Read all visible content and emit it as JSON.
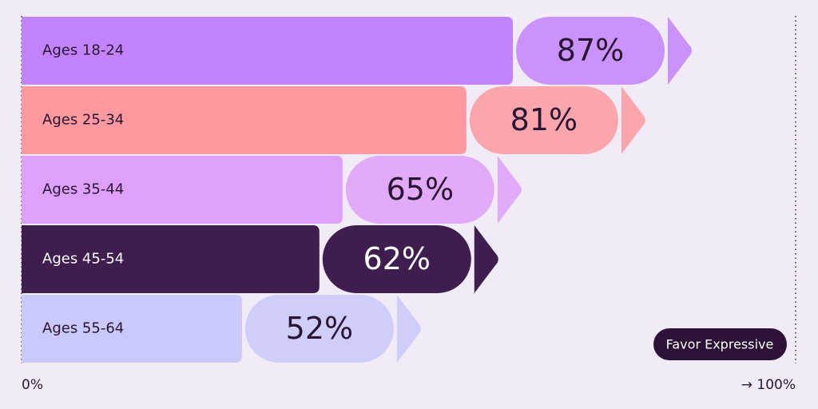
{
  "chart_data": {
    "type": "bar",
    "orientation": "horizontal",
    "categories": [
      "Ages 18-24",
      "Ages 25-34",
      "Ages 35-44",
      "Ages 45-54",
      "Ages 55-64"
    ],
    "series": [
      {
        "name": "Favor Expressive",
        "colors": [
          "#c383fa",
          "#fc9a9f",
          "#dea0f9",
          "#3e1d4f",
          "#c9c9fb"
        ],
        "values": [
          87,
          81,
          65,
          62,
          52
        ],
        "value_labels": [
          "87%",
          "81%",
          "65%",
          "62%",
          "52%"
        ]
      }
    ],
    "xlim": [
      0,
      100
    ],
    "xticks": [
      {
        "value": 0,
        "label": "0%"
      },
      {
        "value": 100,
        "label": "→ 100%"
      }
    ],
    "legend": "bottom-right"
  }
}
